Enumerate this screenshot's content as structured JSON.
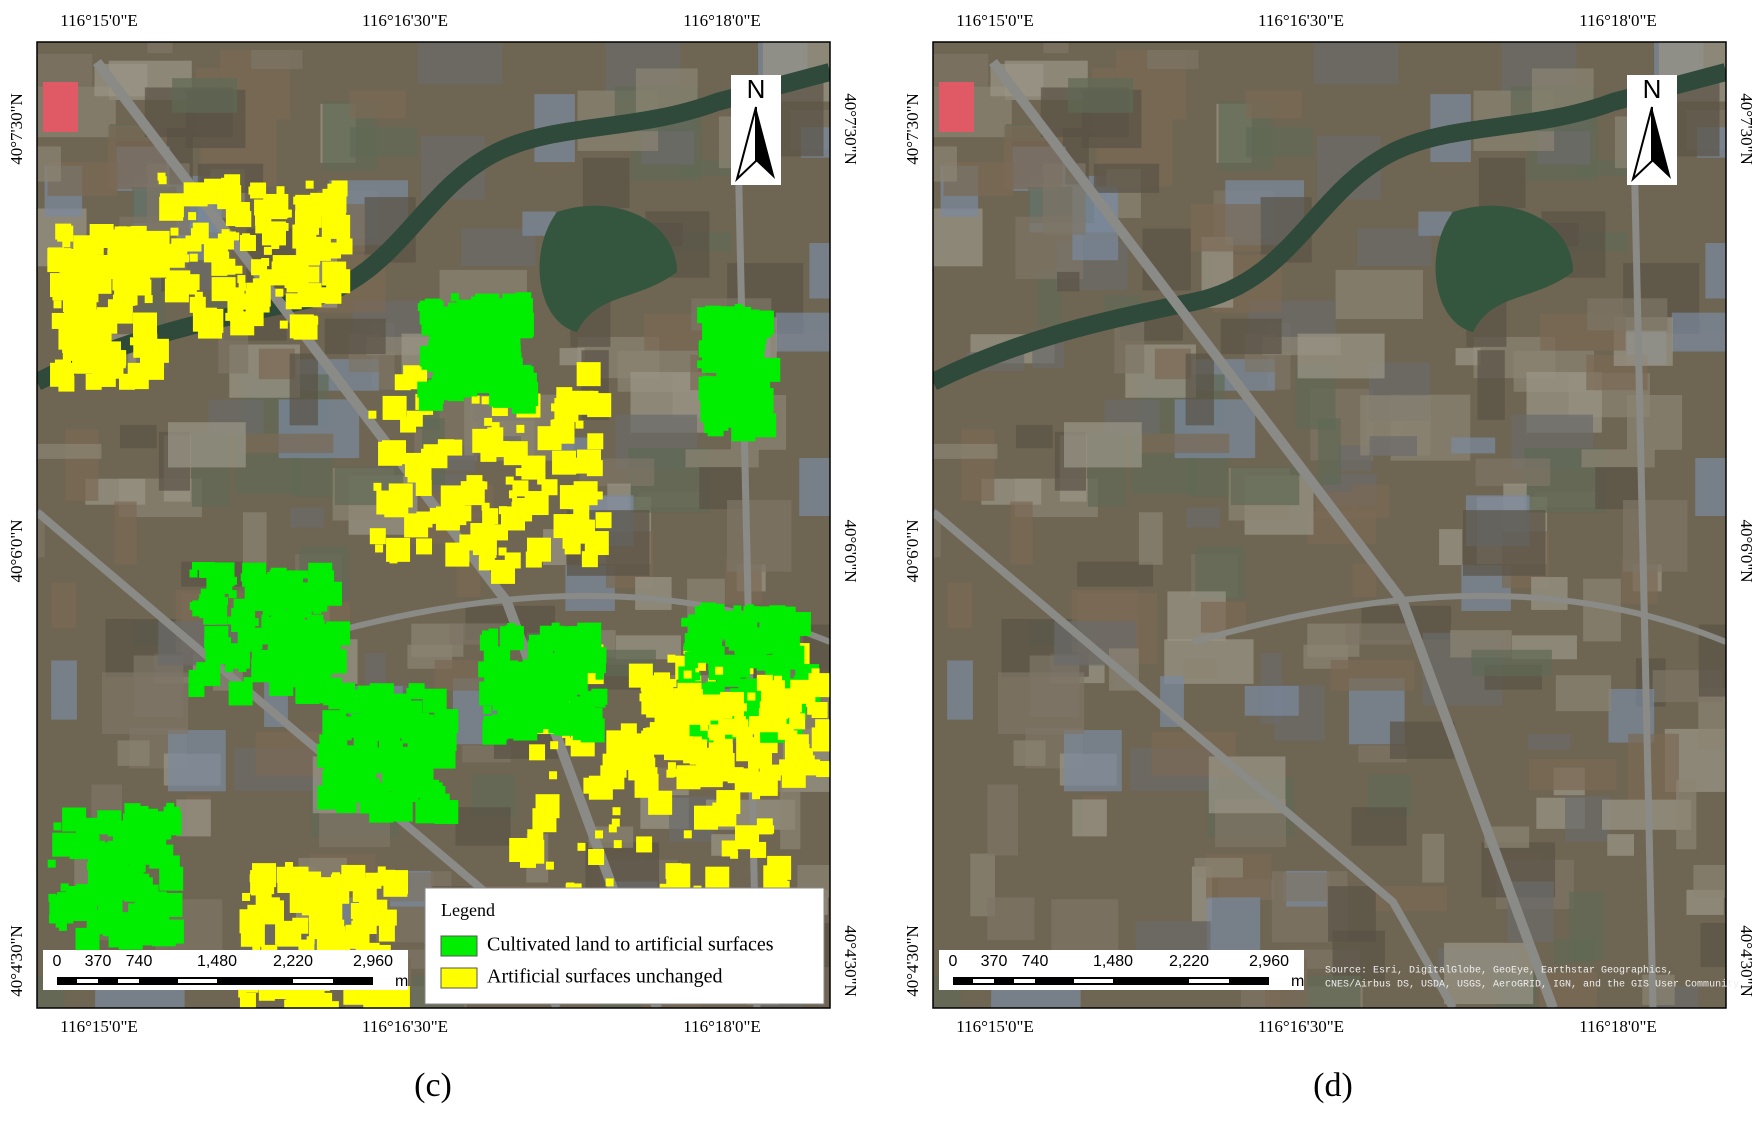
{
  "panels": [
    {
      "caption": "(c)",
      "lon_labels": [
        "116°15'0\"E",
        "116°16'30\"E",
        "116°18'0\"E"
      ],
      "lat_labels": [
        "40°7'30\"N",
        "40°6'0\"N",
        "40°4'30\"N"
      ],
      "north": "N",
      "scale_labels": [
        "0",
        "370",
        "740",
        "1,480",
        "2,220",
        "2,960"
      ],
      "scale_unit": "m",
      "legend": {
        "title": "Legend",
        "items": [
          {
            "label": "Cultivated land to artificial surfaces",
            "color": "#00ee00"
          },
          {
            "label": "Artificial surfaces unchanged",
            "color": "#ffff00"
          }
        ]
      }
    },
    {
      "caption": "(d)",
      "lon_labels": [
        "116°15'0\"E",
        "116°16'30\"E",
        "116°18'0\"E"
      ],
      "lat_labels": [
        "40°7'30\"N",
        "40°6'0\"N",
        "40°4'30\"N"
      ],
      "north": "N",
      "scale_labels": [
        "0",
        "370",
        "740",
        "1,480",
        "2,220",
        "2,960"
      ],
      "scale_unit": "m",
      "attribution": [
        "Source: Esri, DigitalGlobe, GeoEye, Earthstar Geographics,",
        "CNES/Airbus DS, USDA, USGS, AeroGRID, IGN, and the GIS User Community"
      ]
    }
  ]
}
